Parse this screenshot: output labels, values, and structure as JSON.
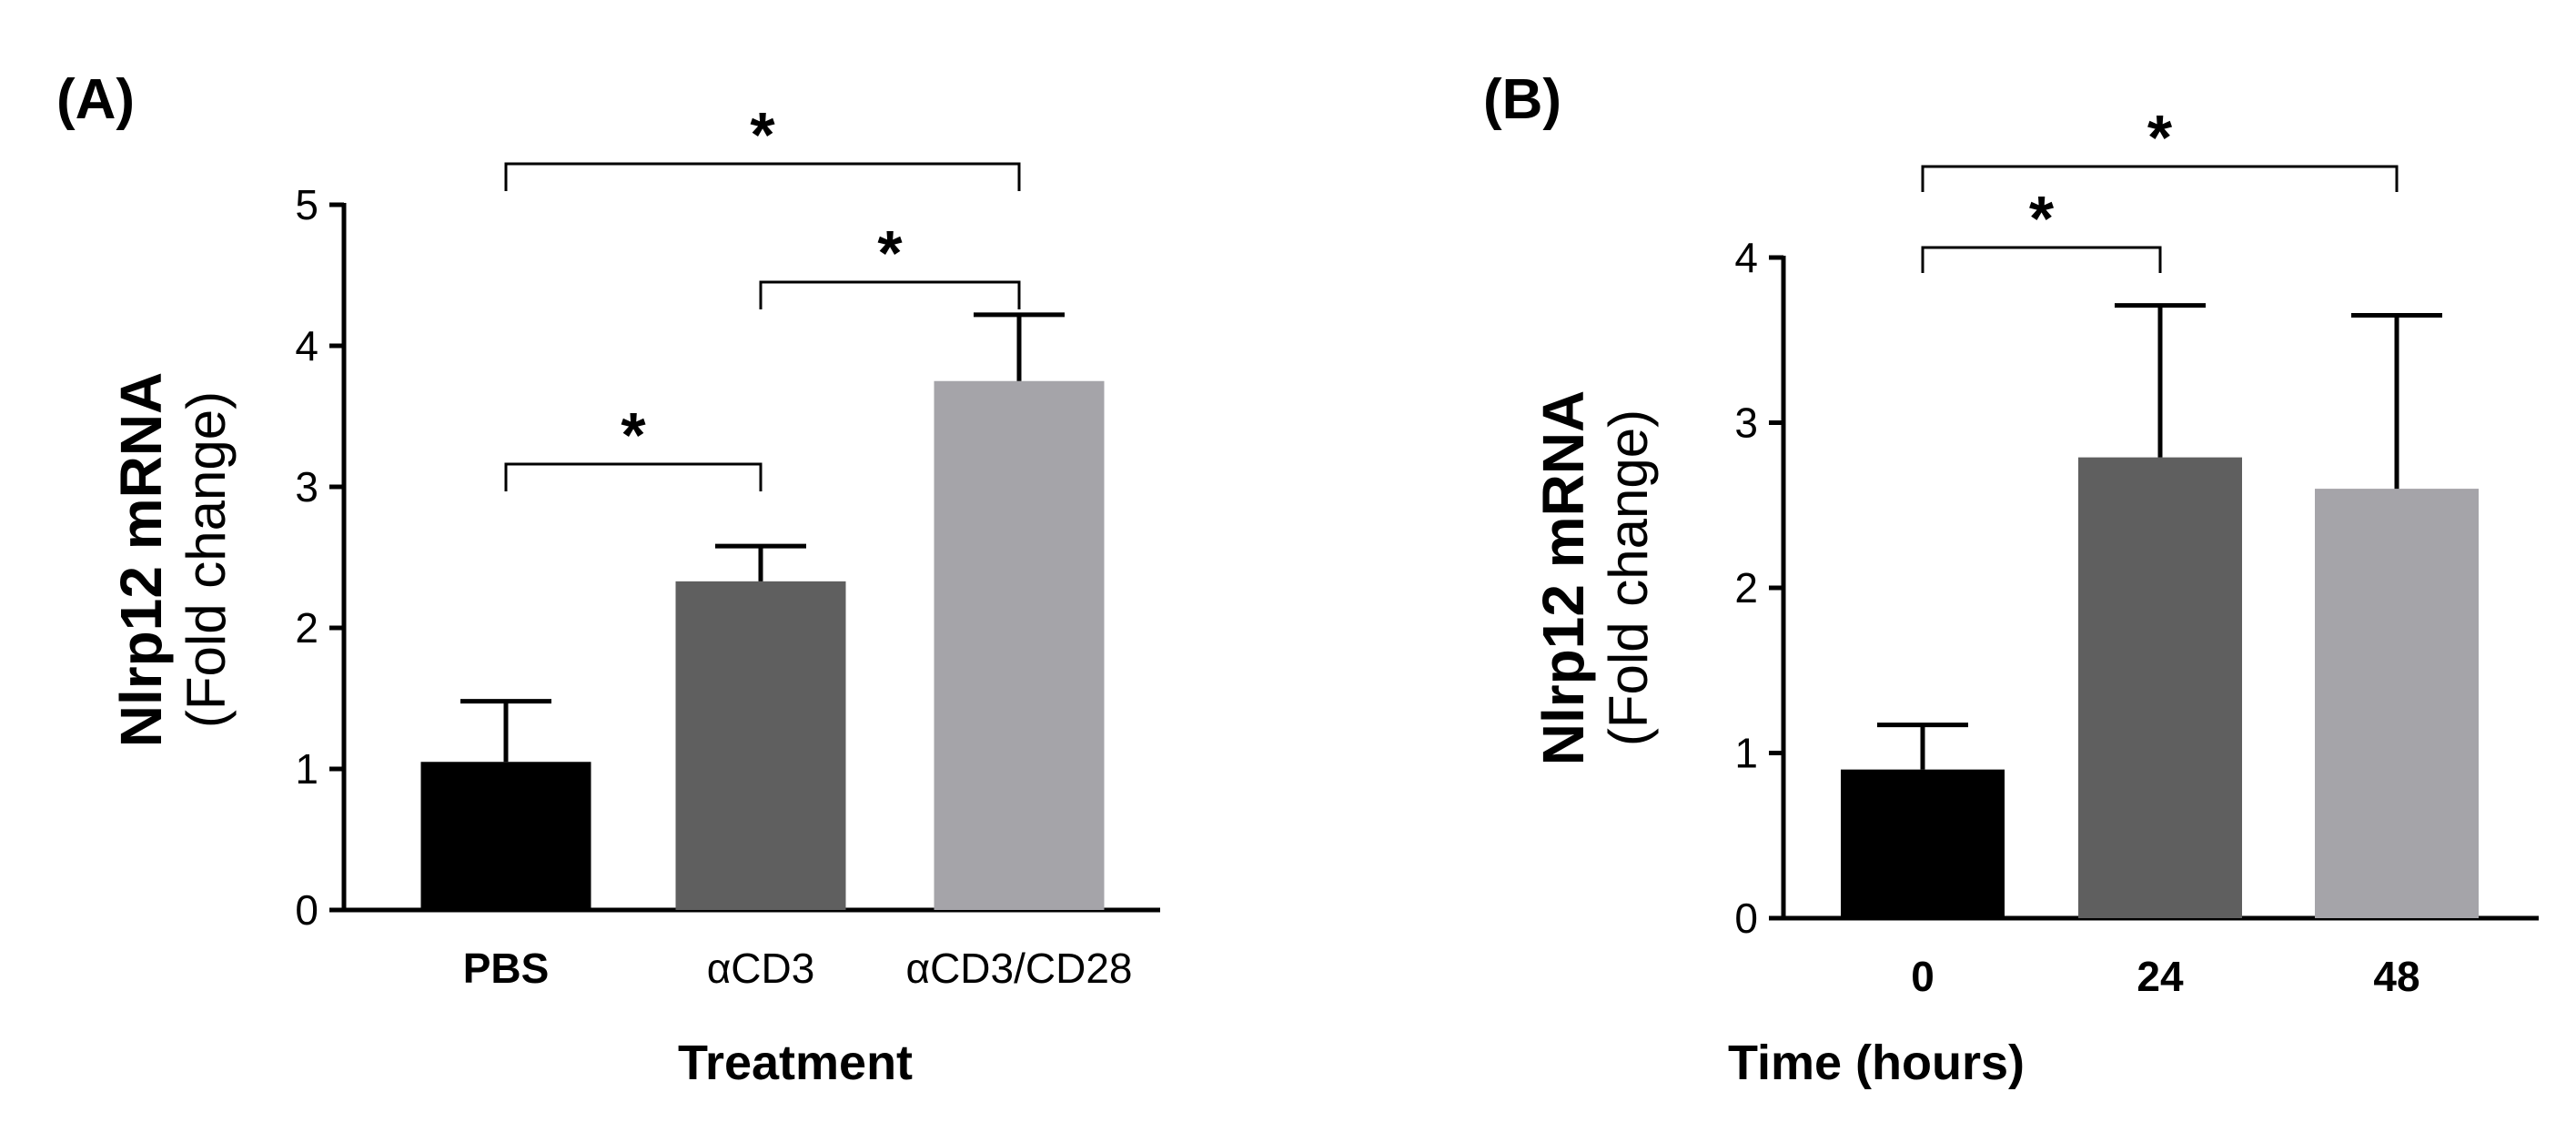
{
  "chart_data": [
    {
      "type": "bar",
      "panel": "(A)",
      "title": "",
      "ylabel_main": "Nlrp12 mRNA",
      "ylabel_sub": "(Fold change)",
      "xlabel": "Treatment",
      "categories": [
        "PBS",
        "αCD3",
        "αCD3/CD28"
      ],
      "values": [
        1.05,
        2.33,
        3.75
      ],
      "errors": [
        0.43,
        0.25,
        0.47
      ],
      "colors": [
        "#000000",
        "#5f5f5f",
        "#a5a4a9"
      ],
      "ylim": [
        0,
        5
      ],
      "yticks": [
        0,
        1,
        2,
        3,
        4,
        5
      ],
      "significance": [
        {
          "from": 0,
          "to": 1,
          "label": "*"
        },
        {
          "from": 1,
          "to": 2,
          "label": "*"
        },
        {
          "from": 0,
          "to": 2,
          "label": "*"
        }
      ]
    },
    {
      "type": "bar",
      "panel": "(B)",
      "title": "",
      "ylabel_main": "Nlrp12 mRNA",
      "ylabel_sub": "(Fold change)",
      "xlabel": "Time (hours)",
      "categories": [
        "0",
        "24",
        "48"
      ],
      "values": [
        0.9,
        2.79,
        2.6
      ],
      "errors": [
        0.27,
        0.92,
        1.05
      ],
      "colors": [
        "#000000",
        "#5f5f5f",
        "#a5a4a9"
      ],
      "ylim": [
        0,
        4
      ],
      "yticks": [
        0,
        1,
        2,
        3,
        4
      ],
      "significance": [
        {
          "from": 0,
          "to": 1,
          "label": "*"
        },
        {
          "from": 0,
          "to": 2,
          "label": "*"
        }
      ]
    }
  ]
}
